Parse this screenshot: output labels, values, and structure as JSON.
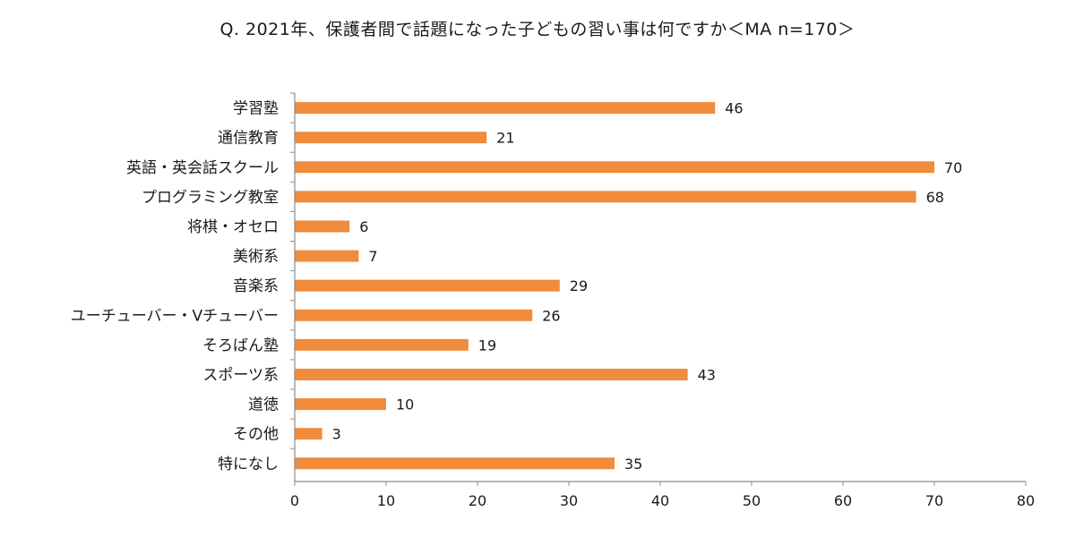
{
  "chart_data": {
    "type": "bar",
    "orientation": "horizontal",
    "title": "Q. 2021年、保護者間で話題になった子どもの習い事は何ですか＜MA n=170＞",
    "categories": [
      "学習塾",
      "通信教育",
      "英語・英会話スクール",
      "プログラミング教室",
      "将棋・オセロ",
      "美術系",
      "音楽系",
      "ユーチューバー・Vチューバー",
      "そろばん塾",
      "スポーツ系",
      "道徳",
      "その他",
      "特になし"
    ],
    "values": [
      46,
      21,
      70,
      68,
      6,
      7,
      29,
      26,
      19,
      43,
      10,
      3,
      35
    ],
    "xlim": [
      0,
      80
    ],
    "xticks": [
      0,
      10,
      20,
      30,
      40,
      50,
      60,
      70,
      80
    ],
    "grid": false,
    "bar_color": "#f08c3c",
    "axis_color": "#8c8c8c"
  }
}
